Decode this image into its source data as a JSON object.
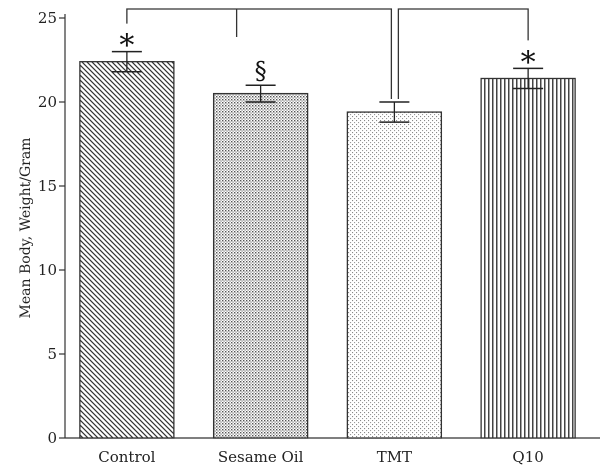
{
  "chart_data": {
    "type": "bar",
    "title": "",
    "xlabel": "",
    "ylabel": "Mean Body, Weight/Gram",
    "ylim": [
      0,
      25
    ],
    "yticks": [
      0,
      5,
      10,
      15,
      20,
      25
    ],
    "grid": false,
    "categories": [
      "Control",
      "Sesame Oil",
      "TMT",
      "Q10"
    ],
    "values": [
      22.4,
      20.5,
      19.4,
      21.4
    ],
    "errors": [
      0.6,
      0.5,
      0.6,
      0.6
    ],
    "patterns": [
      "diagonal-back",
      "dots",
      "dots-fine",
      "vertical-lines"
    ],
    "annotations": [
      "*",
      "§",
      "",
      "*"
    ],
    "brackets": [
      {
        "from": "Control",
        "to": "TMT"
      },
      {
        "from": "TMT",
        "to": "Q10"
      }
    ],
    "colors": {
      "bar_fill": "#ffffff",
      "bar_stroke": "#333333",
      "axis": "#333333"
    }
  }
}
